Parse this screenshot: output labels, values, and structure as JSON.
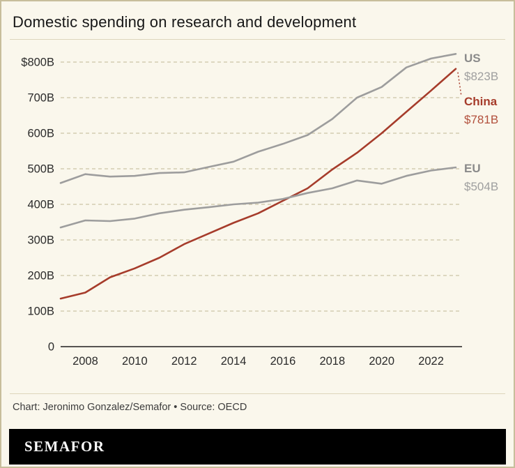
{
  "header": {
    "title": "Domestic spending on research and development"
  },
  "footer": {
    "credit": "Chart: Jeronimo Gonzalez/Semafor • Source: OECD",
    "brand": "SEMAFOR"
  },
  "colors": {
    "background": "#faf7ec",
    "border": "#c8be9b",
    "grid": "#ccc4a6",
    "axis": "#1f1f1f",
    "tick_text": "#2b2b2b",
    "gray_series": "#9d9d9d",
    "china_series": "#a63c2b"
  },
  "chart_data": {
    "type": "line",
    "title": "Domestic spending on research and development",
    "xlabel": "",
    "ylabel": "",
    "x": [
      2007,
      2008,
      2009,
      2010,
      2011,
      2012,
      2013,
      2014,
      2015,
      2016,
      2017,
      2018,
      2019,
      2020,
      2021,
      2022,
      2023
    ],
    "ylim": [
      0,
      800
    ],
    "grid": "horizontal dashed",
    "legend_position": "end-of-line labels, right side",
    "ytick_values": [
      800,
      700,
      600,
      500,
      400,
      300,
      200,
      100,
      0
    ],
    "ytick_labels": [
      "$800B",
      "700B",
      "600B",
      "500B",
      "400B",
      "300B",
      "200B",
      "100B",
      "0"
    ],
    "xtick_labels": [
      "2008",
      "2010",
      "2012",
      "2014",
      "2016",
      "2018",
      "2020",
      "2022"
    ],
    "series": [
      {
        "name": "US",
        "color": "#9d9d9d",
        "label_color": "#8a8a8a",
        "value_color": "#9f9f9f",
        "end_value": "$823B",
        "values": [
          460,
          485,
          478,
          480,
          488,
          490,
          505,
          520,
          548,
          570,
          595,
          640,
          700,
          730,
          785,
          810,
          823
        ]
      },
      {
        "name": "China",
        "color": "#a63c2b",
        "label_color": "#a63c2b",
        "value_color": "#b2503c",
        "end_value": "$781B",
        "values": [
          135,
          152,
          195,
          220,
          250,
          288,
          318,
          348,
          375,
          410,
          445,
          498,
          545,
          600,
          660,
          720,
          781
        ]
      },
      {
        "name": "EU",
        "color": "#9d9d9d",
        "label_color": "#8a8a8a",
        "value_color": "#9f9f9f",
        "end_value": "$504B",
        "values": [
          335,
          355,
          353,
          360,
          375,
          385,
          392,
          400,
          405,
          415,
          432,
          445,
          467,
          458,
          480,
          495,
          504
        ]
      }
    ]
  }
}
